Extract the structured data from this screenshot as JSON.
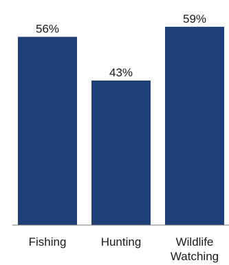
{
  "chart_data": {
    "type": "bar",
    "categories": [
      "Fishing",
      "Hunting",
      "Wildlife Watching"
    ],
    "category_lines": [
      [
        "Fishing"
      ],
      [
        "Hunting"
      ],
      [
        "Wildlife",
        "Watching"
      ]
    ],
    "values": [
      56,
      43,
      59
    ],
    "data_labels": [
      "56%",
      "43%",
      "59%"
    ],
    "ylim": [
      0,
      60
    ],
    "grid": false,
    "legend": "none",
    "colors": {
      "bar": "#1f3f77",
      "axis": "#7a7a7a",
      "text": "#1a1a1a"
    }
  }
}
